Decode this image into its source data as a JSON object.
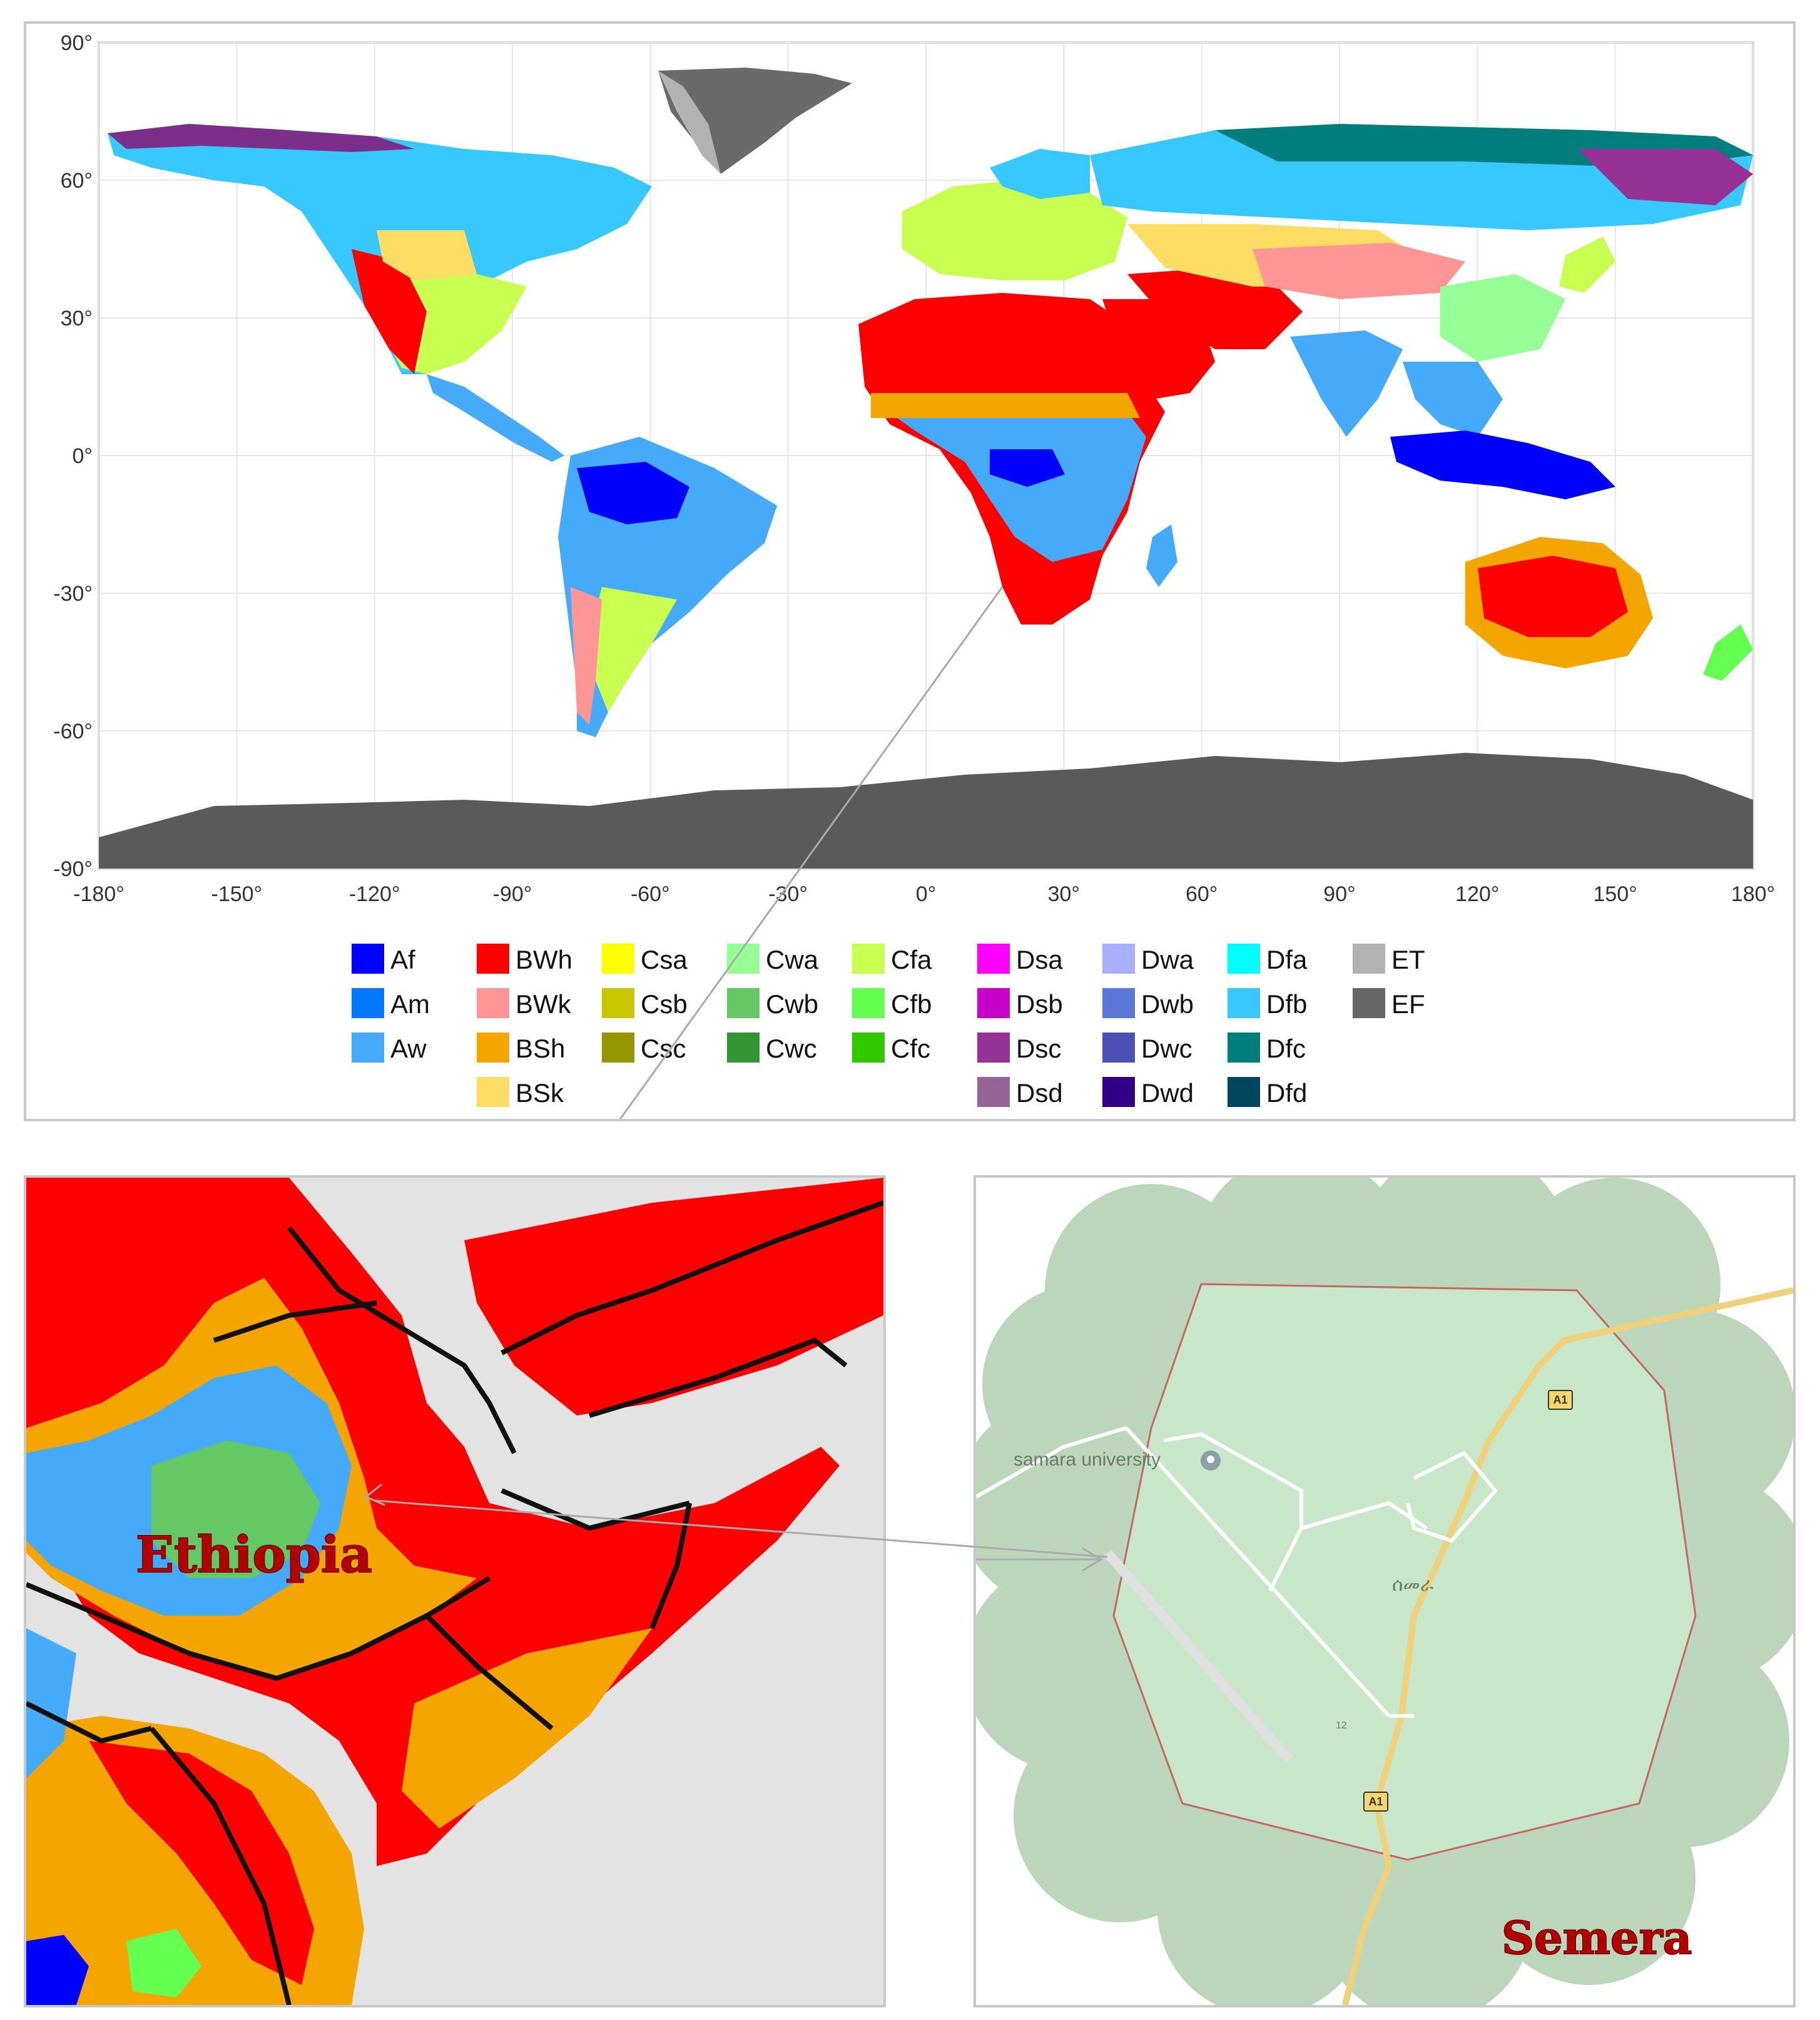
{
  "world_map": {
    "lat_ticks": [
      "90°",
      "60°",
      "30°",
      "0°",
      "-30°",
      "-60°",
      "-90°"
    ],
    "lon_ticks": [
      "-180°",
      "-150°",
      "-120°",
      "-90°",
      "-60°",
      "-30°",
      "0°",
      "30°",
      "60°",
      "90°",
      "120°",
      "150°",
      "180°"
    ]
  },
  "legend": [
    {
      "code": "Af",
      "color": "#0000ff"
    },
    {
      "code": "Am",
      "color": "#0078ff"
    },
    {
      "code": "Aw",
      "color": "#46aafa"
    },
    {
      "code": "BWh",
      "color": "#ff0000"
    },
    {
      "code": "BWk",
      "color": "#ff9696"
    },
    {
      "code": "BSh",
      "color": "#f5a500"
    },
    {
      "code": "BSk",
      "color": "#ffdc64"
    },
    {
      "code": "Csa",
      "color": "#ffff00"
    },
    {
      "code": "Csb",
      "color": "#c8c800"
    },
    {
      "code": "Csc",
      "color": "#969600"
    },
    {
      "code": "Cwa",
      "color": "#96ff96"
    },
    {
      "code": "Cwb",
      "color": "#64c864"
    },
    {
      "code": "Cwc",
      "color": "#329632"
    },
    {
      "code": "Cfa",
      "color": "#c8ff50"
    },
    {
      "code": "Cfb",
      "color": "#64ff50"
    },
    {
      "code": "Cfc",
      "color": "#32c800"
    },
    {
      "code": "Dsa",
      "color": "#ff00ff"
    },
    {
      "code": "Dsb",
      "color": "#c800c8"
    },
    {
      "code": "Dsc",
      "color": "#963296"
    },
    {
      "code": "Dsd",
      "color": "#966496"
    },
    {
      "code": "Dwa",
      "color": "#aaafff"
    },
    {
      "code": "Dwb",
      "color": "#5a78dc"
    },
    {
      "code": "Dwc",
      "color": "#4b50b4"
    },
    {
      "code": "Dwd",
      "color": "#320087"
    },
    {
      "code": "Dfa",
      "color": "#00ffff"
    },
    {
      "code": "Dfb",
      "color": "#37c8ff"
    },
    {
      "code": "Dfc",
      "color": "#007d7d"
    },
    {
      "code": "Dfd",
      "color": "#00465f"
    },
    {
      "code": "ET",
      "color": "#b2b2b2"
    },
    {
      "code": "EF",
      "color": "#666666"
    }
  ],
  "ethiopia_panel": {
    "label": "Ethiopia"
  },
  "semera_panel": {
    "label": "Semera",
    "poi_label": "samara university",
    "road_badge_1": "A1",
    "road_badge_2": "A1",
    "amharic_label": "ሰመራ",
    "road_mark": "12"
  }
}
